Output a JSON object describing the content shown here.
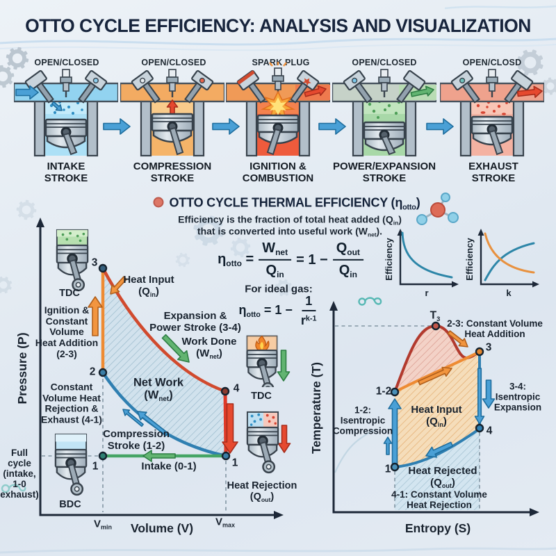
{
  "title": "OTTO CYCLE EFFICIENCY: ANALYSIS AND VISUALIZATION",
  "palette": {
    "background": "#e6edf4",
    "ink": "#18222e",
    "accent_blue": "#2f7fb1",
    "accent_orange": "#ee8b33",
    "accent_red": "#df3a28",
    "accent_green": "#46a566",
    "flow_arrow": "#4aa6da",
    "intake_gas": "#ace0f6",
    "compression_gas": "#f5b469",
    "combustion_gas": "#ef6a44",
    "power_gas": "#a8d8a8",
    "exhaust_gas": "#f4b2a2"
  },
  "strokes": [
    {
      "top_label": "OPEN/CLOSED",
      "name": "INTAKE\nSTROKE"
    },
    {
      "top_label": "OPEN/CLOSED",
      "name": "COMPRESSION\nSTROKE"
    },
    {
      "top_label": "SPARK PLUG",
      "name": "IGNITION &\nCOMBUSTION"
    },
    {
      "top_label": "OPEN/CLOSED",
      "name": "POWER/EXPANSION\nSTROKE"
    },
    {
      "top_label": "OPEN/CLOSD",
      "name": "EXHAUST\nSTROKE"
    }
  ],
  "efficiency_section": {
    "heading": "OTTO CYCLE THERMAL EFFICIENCY (η<sub>otto</sub>)",
    "desc_line1": "Efficiency is the fraction of total heat added (Q<sub>in</sub>)",
    "desc_line2": "that is converted into useful work (W<sub>net</sub>).",
    "formula_main": {
      "lhs": "η<sub>otto</sub> =",
      "frac1_num": "W<sub>net</sub>",
      "frac1_den": "Q<sub>in</sub>",
      "mid": "= 1 −",
      "frac2_num": "Q<sub>out</sub>",
      "frac2_den": "Q<sub>in</sub>"
    },
    "ideal_gas_label": "For ideal gas:",
    "formula_ideal": {
      "lhs": "η<sub>otto</sub> = 1 −",
      "num": "1",
      "den": "r<sup>k-1</sup>"
    }
  },
  "chart_data": [
    {
      "type": "line",
      "title": "",
      "xlabel": "r",
      "ylabel": "Efficiency",
      "series": [
        {
          "name": "efficiency-vs-r",
          "color": "#2d86a8",
          "trend": "decreasing convex",
          "x": [
            0,
            0.25,
            0.5,
            0.75,
            1
          ],
          "y": [
            1,
            0.45,
            0.22,
            0.12,
            0.08
          ]
        }
      ],
      "grid": false,
      "legend": false
    },
    {
      "type": "line",
      "title": "",
      "xlabel": "k",
      "ylabel": "Efficiency",
      "series": [
        {
          "name": "efficiency-rising",
          "color": "#2d86a8",
          "trend": "increasing concave",
          "x": [
            0,
            0.25,
            0.5,
            0.75,
            1
          ],
          "y": [
            0.08,
            0.35,
            0.58,
            0.72,
            0.82
          ]
        },
        {
          "name": "efficiency-falling",
          "color": "#e8913f",
          "trend": "decreasing convex",
          "x": [
            0,
            0.25,
            0.5,
            0.75,
            1
          ],
          "y": [
            0.95,
            0.6,
            0.35,
            0.22,
            0.17
          ]
        }
      ],
      "grid": false,
      "legend": false
    }
  ],
  "pv_diagram": {
    "xlabel": "Volume (V)",
    "ylabel": "Pressure (P)",
    "x_ticks": {
      "vmin": "V<sub>min</sub>",
      "vmax": "V<sub>max</sub>"
    },
    "points": {
      "p1_left": "1",
      "p1_right": "1",
      "p2": "2",
      "p3": "3",
      "p4": "4"
    },
    "labels": {
      "heat_input": "Heat Input\n(Q<sub>in</sub>)",
      "ignition_23": "Ignition &\nConstant\nVolume\nHeat Addition\n(2-3)",
      "expansion_34": "Expansion &\nPower Stroke (3-4)",
      "work_done": "Work Done\n(W<sub>net</sub>)",
      "net_work": "Net Work\n(W<sub>net</sub>)",
      "const_vol_rejection": "Constant\nVolume Heat\nRejection &\nExhaust (4-1)",
      "compression_12": "Compression\nStroke (1-2)",
      "intake_01": "Intake (0-1)",
      "full_cycle": "Full\ncycle\n(intake,\n1-0\nexhaust)",
      "heat_rejection": "Heat Rejection\n(Q<sub>out</sub>)",
      "tdc_top": "TDC",
      "tdc_right": "TDC",
      "bdc": "BDC"
    }
  },
  "ts_diagram": {
    "xlabel": "Entropy (S)",
    "ylabel": "Temperature (T)",
    "points": {
      "p12": "1-2",
      "p3": "3",
      "p4": "4",
      "p1": "1",
      "t3": "T<sub>3</sub>"
    },
    "labels": {
      "heat_addition_23": "2-3: Constant Volume\nHeat Addition",
      "isentropic_34": "3-4:\nIsentropic\nExpansion",
      "isentropic_12": "1-2:\nIsentropic\nCompression",
      "heat_input": "Heat Input\n(Q<sub>in</sub>)",
      "heat_rejected": "Heat Rejected\n(Q<sub>out</sub>)",
      "const_vol_rejection_41": "4-1: Constant Volume\nHeat Rejection"
    }
  }
}
